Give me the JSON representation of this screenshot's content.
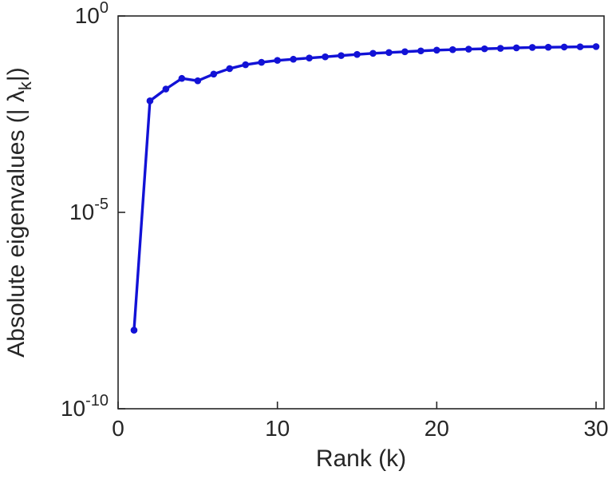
{
  "chart_data": {
    "type": "line",
    "title": "",
    "xlabel": "Rank (k)",
    "ylabel": "Absolute eigenvalues (|λ_k|)",
    "ylabel_rich": {
      "prefix": "Absolute eigenvalues (|  ",
      "symbol": "λ",
      "subscript": "k",
      "suffix": "|)"
    },
    "x": [
      1,
      2,
      3,
      4,
      5,
      6,
      7,
      8,
      9,
      10,
      11,
      12,
      13,
      14,
      15,
      16,
      17,
      18,
      19,
      20,
      21,
      22,
      23,
      24,
      25,
      26,
      27,
      28,
      29,
      30
    ],
    "values": [
      1e-08,
      0.0069,
      0.0138,
      0.0257,
      0.0224,
      0.0331,
      0.0457,
      0.0575,
      0.066,
      0.074,
      0.079,
      0.085,
      0.091,
      0.098,
      0.105,
      0.112,
      0.117,
      0.123,
      0.129,
      0.135,
      0.139,
      0.143,
      0.146,
      0.15,
      0.154,
      0.158,
      0.16,
      0.162,
      0.164,
      0.166
    ],
    "xlim": [
      0,
      30.5
    ],
    "y_scale": "log",
    "ylog_lim": [
      -10,
      0
    ],
    "x_ticks": [
      0,
      10,
      20,
      30
    ],
    "y_tick_exponents": [
      0,
      -5,
      -10
    ],
    "y_tick_base": "10",
    "grid": false,
    "legend": "none",
    "line_color": "#1212d6",
    "marker": "circle-filled",
    "axis_color": "#262626",
    "background_color": "#ffffff"
  }
}
